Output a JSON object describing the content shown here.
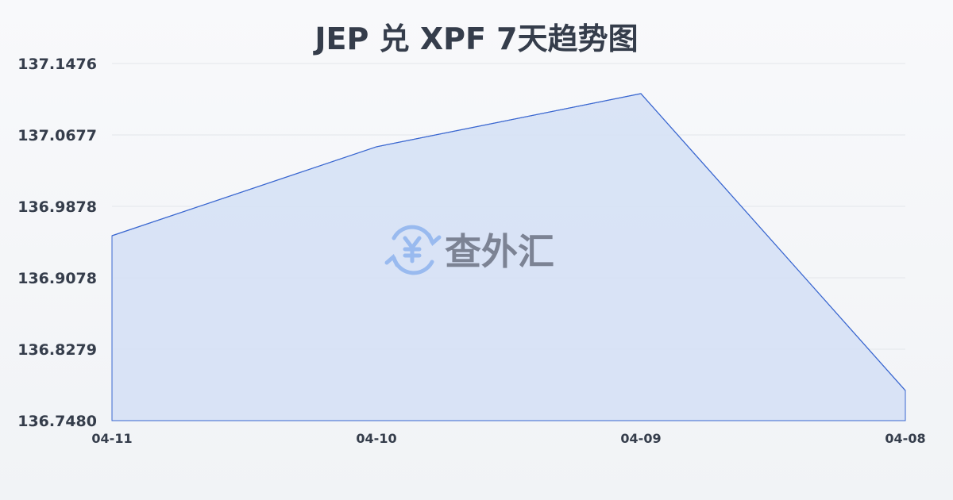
{
  "chart_data": {
    "type": "area",
    "title": "JEP 兑 XPF 7天趋势图",
    "categories": [
      "04-11",
      "04-10",
      "04-09",
      "04-08"
    ],
    "values": [
      136.9549,
      137.0544,
      137.1139,
      136.7817
    ],
    "yticks": [
      "137.1476",
      "137.0677",
      "136.9878",
      "136.9078",
      "136.8279",
      "136.7480"
    ],
    "ylim": [
      136.748,
      137.1476
    ],
    "grid": true,
    "colors": {
      "line": "#3a67d0",
      "fill": "#d6e1f5",
      "grid": "#e3e6ea",
      "text": "#353d4b"
    }
  },
  "watermark": {
    "text": "查外汇",
    "icon": "yen-exchange-icon"
  }
}
